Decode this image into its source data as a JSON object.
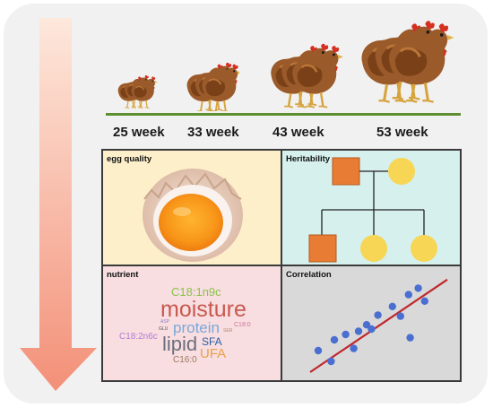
{
  "weeks": [
    "25 week",
    "33 week",
    "43 week",
    "53 week"
  ],
  "panels": {
    "egg_quality": "egg quality",
    "heritability": "Heritability",
    "nutrient": "nutrient",
    "correlation": "Correlation"
  },
  "word_cloud": {
    "c18_1n9c": "C18:1n9c",
    "moisture": "moisture",
    "asp": "ASP",
    "glu": "GLU",
    "protein": "protein",
    "c18_0": "C18:0",
    "ser": "SER",
    "c18_2n6c": "C18:2n6c",
    "lipid": "lipid",
    "sfa": "SFA",
    "ufa": "UFA",
    "c16_0": "C16:0"
  },
  "colors": {
    "arrow_top": "#fde5d8",
    "arrow_bottom": "#f39078",
    "ground_line": "#5d8f2e",
    "egg_quality_bg": "#fdefc9",
    "heritability_bg": "#d6f0ee",
    "nutrient_bg": "#f8dde1",
    "correlation_bg": "#d9d9d9",
    "pedigree_square": "#e87c35",
    "pedigree_circle": "#f7d655",
    "scatter_point": "#4a6fd1",
    "trend_line": "#c0272d"
  },
  "icons": [
    "hen-icon",
    "egg-yolk-icon",
    "pedigree-icon",
    "scatter-plot-icon",
    "time-arrow-icon"
  ],
  "scatter_points": [
    {
      "x": 1,
      "y": 2
    },
    {
      "x": 2,
      "y": 3
    },
    {
      "x": 2.7,
      "y": 3.5
    },
    {
      "x": 3.2,
      "y": 2.2
    },
    {
      "x": 3.5,
      "y": 3.8
    },
    {
      "x": 4,
      "y": 4.4
    },
    {
      "x": 4.3,
      "y": 4
    },
    {
      "x": 4.7,
      "y": 5.3
    },
    {
      "x": 5.6,
      "y": 6.1
    },
    {
      "x": 6.1,
      "y": 5.2
    },
    {
      "x": 6.6,
      "y": 7.2
    },
    {
      "x": 7.2,
      "y": 7.8
    },
    {
      "x": 7.6,
      "y": 6.6
    },
    {
      "x": 1.8,
      "y": 1
    },
    {
      "x": 6.7,
      "y": 3.2
    }
  ],
  "trend": {
    "x0": 0.5,
    "y0": 0,
    "x1": 9,
    "y1": 8.6
  }
}
